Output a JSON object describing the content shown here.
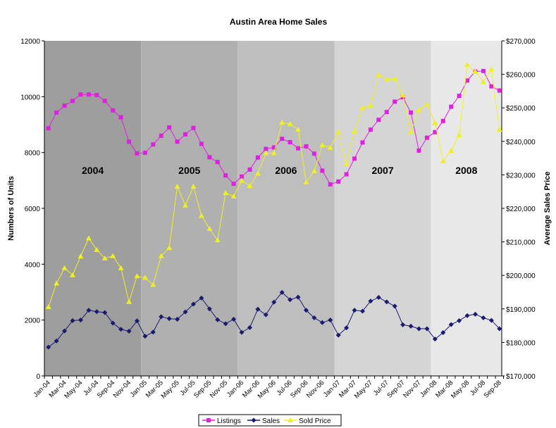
{
  "chart_data": {
    "type": "line",
    "title": "Austin Area Home Sales",
    "ylabel": "Numbers of Units",
    "y2label": "Average Sales Price",
    "ylim": [
      0,
      12000
    ],
    "y2lim": [
      170000,
      270000
    ],
    "yticks": [
      "0",
      "2000",
      "4000",
      "6000",
      "8000",
      "10000",
      "12000"
    ],
    "y2ticks": [
      "$170,000",
      "$180,000",
      "$190,000",
      "$200,000",
      "$210,000",
      "$220,000",
      "$230,000",
      "$240,000",
      "$250,000",
      "$260,000",
      "$270,000"
    ],
    "x": [
      "Jan-04",
      "Feb-04",
      "Mar-04",
      "Apr-04",
      "May-04",
      "Jun-04",
      "Jul-04",
      "Aug-04",
      "Sep-04",
      "Oct-04",
      "Nov-04",
      "Dec-04",
      "Jan-05",
      "Feb-05",
      "Mar-05",
      "Apr-05",
      "May-05",
      "Jun-05",
      "Jul-05",
      "Aug-05",
      "Sep-05",
      "Oct-05",
      "Nov-05",
      "Dec-05",
      "Jan-06",
      "Feb-06",
      "Mar-06",
      "Apr-06",
      "May-06",
      "Jun-06",
      "Jul-06",
      "Aug-06",
      "Sep-06",
      "Oct-06",
      "Nov-06",
      "Dec-06",
      "Jan-07",
      "Feb-07",
      "Mar-07",
      "Apr-07",
      "May-07",
      "Jun-07",
      "Jul-07",
      "Aug-07",
      "Sep-07",
      "Oct-07",
      "Nov-07",
      "Dec-07",
      "Jan-08",
      "Feb-08",
      "Mar-08",
      "Apr-08",
      "May-08",
      "Jun-08",
      "Jul-08",
      "Aug-08",
      "Sep-08"
    ],
    "xtick_labels": [
      "Jan-04",
      "Mar-04",
      "May-04",
      "Jul-04",
      "Sep-04",
      "Nov-04",
      "Jan-05",
      "Mar-05",
      "May-05",
      "Jul-05",
      "Sep-05",
      "Nov-05",
      "Jan-06",
      "Mar-06",
      "May-06",
      "Jul-06",
      "Sep-06",
      "Nov-06",
      "Jan-07",
      "Mar-07",
      "May-07",
      "Jul-07",
      "Sep-07",
      "Nov-07",
      "Jan-08",
      "Mar-08",
      "May-08",
      "Jul-08",
      "Sep-08"
    ],
    "bands": [
      {
        "label": "2004",
        "color": "#9e9e9e"
      },
      {
        "label": "2005",
        "color": "#b0b0b0"
      },
      {
        "label": "2006",
        "color": "#bebebe"
      },
      {
        "label": "2007",
        "color": "#d5d5d5"
      },
      {
        "label": "2008",
        "color": "#e8e8e8"
      }
    ],
    "series": [
      {
        "name": "Listings",
        "axis": "left",
        "color": "#e020e0",
        "marker": "square",
        "values": [
          8870,
          9430,
          9680,
          9850,
          10080,
          10080,
          10060,
          9850,
          9510,
          9260,
          8390,
          7970,
          7990,
          8290,
          8600,
          8900,
          8390,
          8650,
          8880,
          8310,
          7830,
          7660,
          7180,
          6880,
          7140,
          7390,
          7820,
          8130,
          8180,
          8490,
          8370,
          8150,
          8220,
          7960,
          7350,
          6860,
          6960,
          7220,
          7780,
          8360,
          8820,
          9170,
          9450,
          9820,
          9980,
          9430,
          8070,
          8530,
          8730,
          9130,
          9640,
          10030,
          10580,
          10900,
          10920,
          10370,
          10220
        ]
      },
      {
        "name": "Sales",
        "axis": "left",
        "color": "#1a1a70",
        "marker": "diamond",
        "values": [
          1030,
          1250,
          1610,
          1980,
          2000,
          2350,
          2300,
          2270,
          1890,
          1670,
          1600,
          1970,
          1420,
          1570,
          2120,
          2050,
          2030,
          2290,
          2570,
          2790,
          2400,
          2010,
          1870,
          2030,
          1560,
          1730,
          2390,
          2190,
          2640,
          2990,
          2730,
          2820,
          2350,
          2080,
          1910,
          2000,
          1460,
          1720,
          2350,
          2320,
          2680,
          2810,
          2650,
          2500,
          1830,
          1780,
          1690,
          1690,
          1320,
          1550,
          1840,
          1980,
          2160,
          2210,
          2080,
          1990,
          1690
        ]
      },
      {
        "name": "Sold Price",
        "axis": "right",
        "color": "#f0f020",
        "marker": "triangle",
        "values": [
          190600,
          197600,
          202200,
          200100,
          205700,
          211100,
          207600,
          205100,
          205800,
          202200,
          192100,
          199800,
          199300,
          197200,
          205800,
          208200,
          226500,
          220900,
          226500,
          217800,
          213900,
          210500,
          224600,
          223600,
          228300,
          226700,
          230400,
          236500,
          236500,
          245600,
          245200,
          243500,
          227800,
          231100,
          238900,
          238100,
          242800,
          233200,
          243000,
          250000,
          250700,
          259800,
          258400,
          258700,
          253800,
          242800,
          249300,
          251000,
          245500,
          234100,
          237200,
          241900,
          262900,
          260800,
          257800,
          261500,
          243500
        ]
      }
    ],
    "legend": "bottom",
    "grid": false
  }
}
